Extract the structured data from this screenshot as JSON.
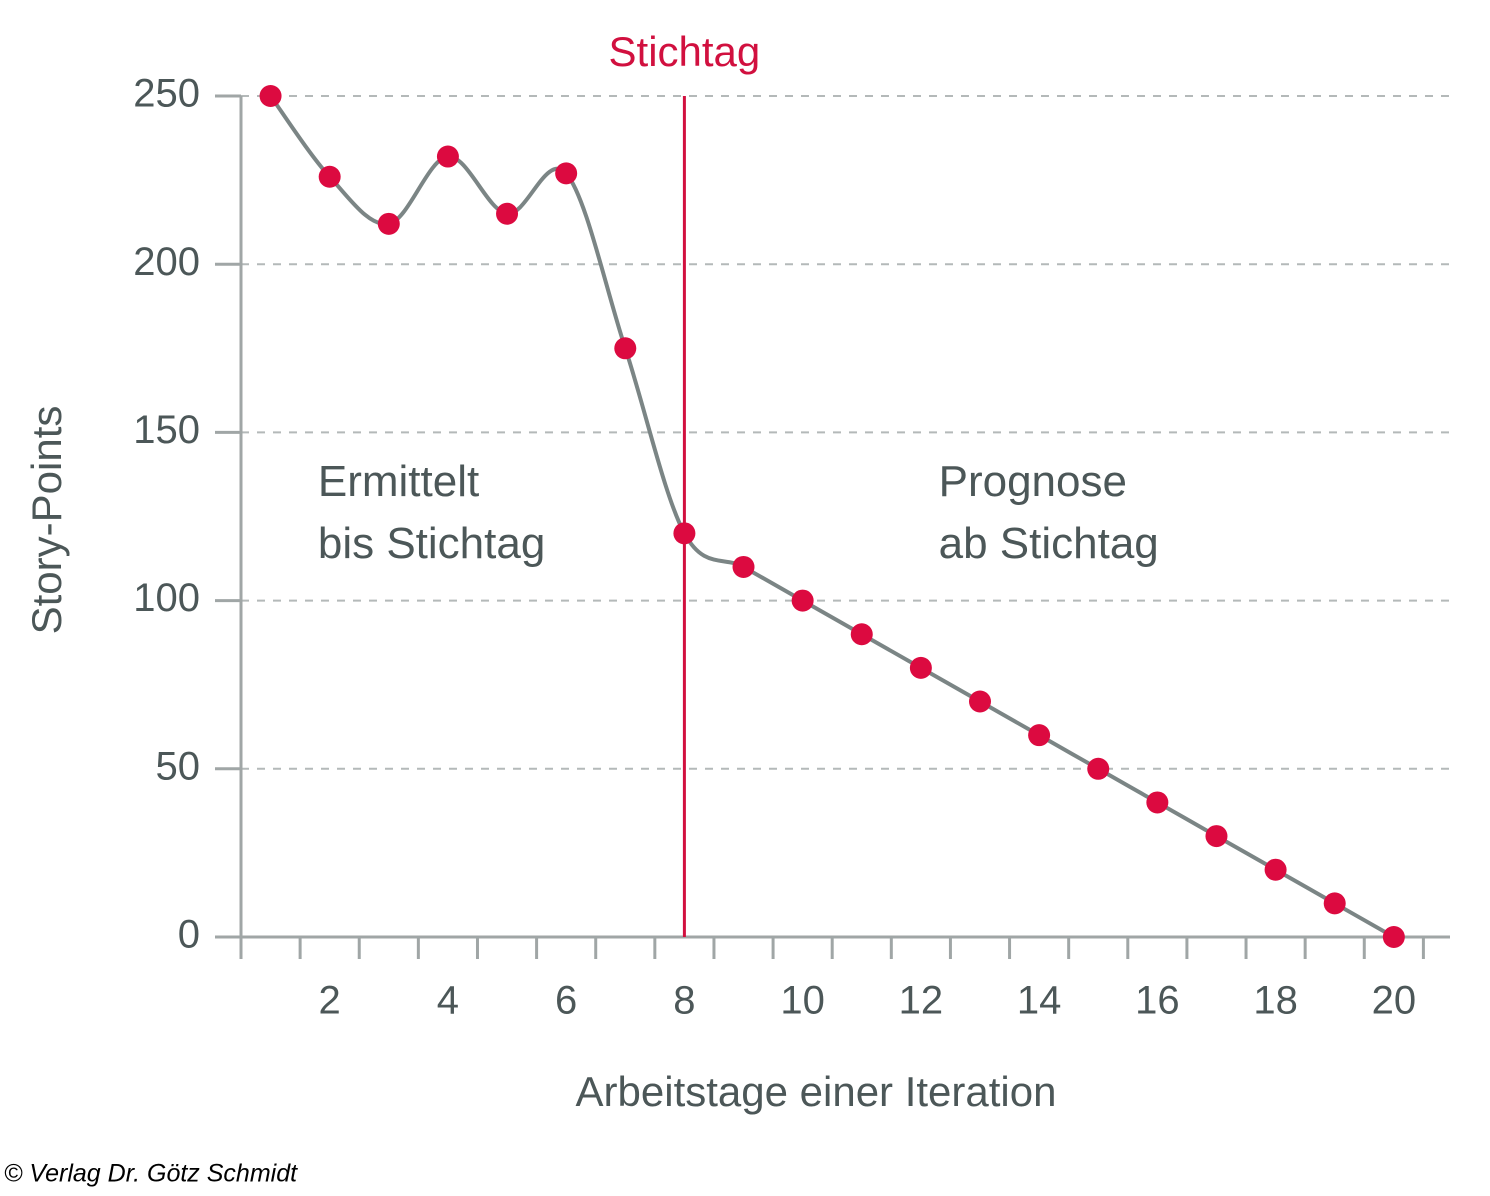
{
  "chart_data": {
    "type": "line",
    "x_label": "Arbeitstage einer Iteration",
    "y_label": "Story-Points",
    "x": [
      1,
      2,
      3,
      4,
      5,
      6,
      7,
      8,
      9,
      10,
      11,
      12,
      13,
      14,
      15,
      16,
      17,
      18,
      19,
      20
    ],
    "series": [
      {
        "color": "#7b8585",
        "marker_color": "#dc0a40",
        "values": [
          250,
          226,
          212,
          232,
          215,
          227,
          175,
          120,
          110,
          100,
          90,
          80,
          70,
          60,
          50,
          40,
          30,
          20,
          10,
          0
        ]
      }
    ],
    "xlim": [
      0.5,
      20.95
    ],
    "ylim": [
      0,
      250
    ],
    "xticks": [
      2,
      4,
      6,
      8,
      10,
      12,
      14,
      16,
      18,
      20
    ],
    "xminorticks": [
      0.5,
      1.5,
      2.5,
      3.5,
      4.5,
      5.5,
      6.5,
      7.5,
      8.5,
      9.5,
      10.5,
      11.5,
      12.5,
      13.5,
      14.5,
      15.5,
      16.5,
      17.5,
      18.5,
      19.5,
      20.5
    ],
    "yticks": [
      0,
      50,
      100,
      150,
      200,
      250
    ],
    "grid": true,
    "marker_line": {
      "x": 8,
      "label": "Stichtag",
      "color": "#d1103f"
    },
    "annotations": [
      {
        "lines": [
          "Ermittelt",
          "bis Stichtag"
        ],
        "x": 1.8,
        "y": 150
      },
      {
        "lines": [
          "Prognose",
          "ab Stichtag"
        ],
        "x": 12.3,
        "y": 150
      }
    ],
    "copyright": "© Verlag Dr. Götz Schmidt"
  }
}
